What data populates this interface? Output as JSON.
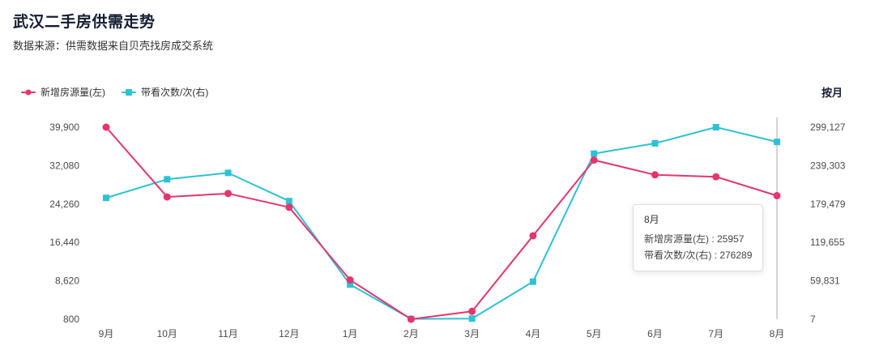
{
  "header": {
    "title": "武汉二手房供需走势",
    "subtitle": "数据来源：供需数据来自贝壳找房成交系统"
  },
  "legend": {
    "items": [
      {
        "label": "新增房源量(左)",
        "color": "#e5356e",
        "marker": "dot"
      },
      {
        "label": "带看次数/次(右)",
        "color": "#2cc2d5",
        "marker": "square"
      }
    ],
    "period_label": "按月"
  },
  "chart_data": {
    "type": "line",
    "title": "武汉二手房供需走势",
    "categories": [
      "9月",
      "10月",
      "11月",
      "12月",
      "1月",
      "2月",
      "3月",
      "4月",
      "5月",
      "6月",
      "7月",
      "8月"
    ],
    "series": [
      {
        "name": "新增房源量(左)",
        "axis": "left",
        "color": "#e5356e",
        "symbol": "circle",
        "values": [
          39900,
          25700,
          26400,
          23600,
          8800,
          800,
          2400,
          17800,
          33200,
          30200,
          29800,
          25957
        ]
      },
      {
        "name": "带看次数/次(右)",
        "axis": "right",
        "color": "#2cc2d5",
        "symbol": "square",
        "values": [
          189000,
          218000,
          228000,
          184000,
          54000,
          500,
          1000,
          58500,
          258000,
          274000,
          299127,
          276289
        ]
      }
    ],
    "left_axis": {
      "ticks": [
        "39,900",
        "32,080",
        "24,260",
        "16,440",
        "8,620",
        "800"
      ],
      "min": 800,
      "max": 39900
    },
    "right_axis": {
      "ticks": [
        "299,127",
        "239,303",
        "179,479",
        "119,655",
        "59,831",
        "7"
      ],
      "min": 7,
      "max": 299127
    },
    "grid": false,
    "legend_position": "top-left",
    "tooltip": {
      "title": "8月",
      "lines": [
        "新增房源量(左) : 25957",
        "带看次数/次(右) : 276289"
      ],
      "category_index": 11,
      "pointer_color": "#aaaaaa"
    }
  }
}
